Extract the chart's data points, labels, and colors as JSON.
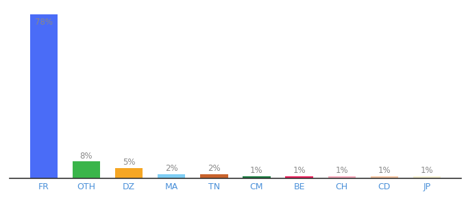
{
  "categories": [
    "FR",
    "OTH",
    "DZ",
    "MA",
    "TN",
    "CM",
    "BE",
    "CH",
    "CD",
    "JP"
  ],
  "values": [
    78,
    8,
    5,
    2,
    2,
    1,
    1,
    1,
    1,
    1
  ],
  "labels": [
    "78%",
    "8%",
    "5%",
    "2%",
    "2%",
    "1%",
    "1%",
    "1%",
    "1%",
    "1%"
  ],
  "colors": [
    "#4a6cf7",
    "#3ab54a",
    "#f5a623",
    "#7ecef4",
    "#c8622c",
    "#1a7a3f",
    "#e8205a",
    "#f4a7b9",
    "#f4c4a1",
    "#f5f0d0"
  ],
  "ylim": [
    0,
    82
  ],
  "background_color": "#ffffff",
  "bar_width": 0.65,
  "label_fontsize": 8.5,
  "tick_fontsize": 9,
  "label_color_inside": "#888888",
  "label_color_outside": "#888888",
  "tick_color": "#4a90d9"
}
